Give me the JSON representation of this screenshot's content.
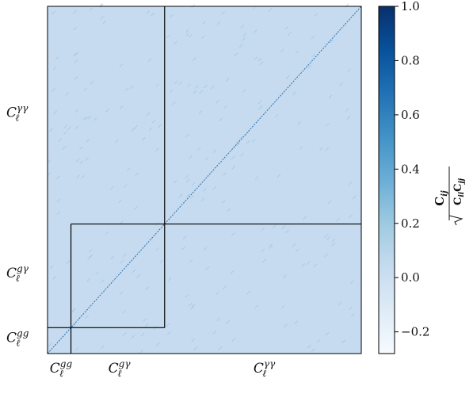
{
  "chart_data": {
    "type": "heatmap",
    "title": "",
    "description_matrix": "normalized covariance (correlation) matrix of binned angular power spectra",
    "blocks": [
      {
        "name": "gg",
        "label_main": "C",
        "label_sup": "gg",
        "label_sub": "ℓ",
        "bins": 5
      },
      {
        "name": "gγ",
        "label_main": "C",
        "label_sup": "gγ",
        "label_sub": "ℓ",
        "bins": 20
      },
      {
        "name": "γγ",
        "label_main": "C",
        "label_sup": "γγ",
        "label_sub": "ℓ",
        "bins": 42
      }
    ],
    "x_labels": [
      "gg",
      "gγ",
      "γγ"
    ],
    "y_labels": [
      "γγ",
      "gγ",
      "gg"
    ],
    "diagonal_value": 1.0,
    "background_value": 0.0,
    "colorbar": {
      "label_numerator": "C",
      "label_numerator_sub": "ij",
      "label_denominator": "C",
      "label_denominator_sub_1": "ii",
      "label_denominator_sub_2": "jj",
      "range": [
        -0.28,
        1.0
      ],
      "ticks": [
        "1.0",
        "0.8",
        "0.6",
        "0.4",
        "0.2",
        "0.0",
        "−0.2"
      ],
      "tick_values": [
        1.0,
        0.8,
        0.6,
        0.4,
        0.2,
        0.0,
        -0.2
      ],
      "colormap": "Blues"
    },
    "colors": {
      "background": "#c6dbef",
      "diagonal": "#2a6fb0",
      "block_border": "#000000"
    }
  }
}
